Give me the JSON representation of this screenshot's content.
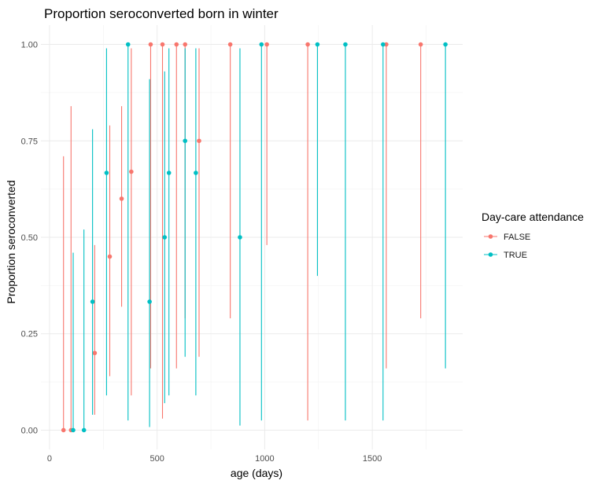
{
  "chart_data": {
    "type": "scatter",
    "title": "Proportion seroconverted born in winter",
    "xlabel": "age (days)",
    "ylabel": "Proportion seroconverted",
    "xlim": [
      -40,
      1920
    ],
    "ylim": [
      -0.05,
      1.05
    ],
    "x_ticks": [
      0,
      500,
      1000,
      1500
    ],
    "x_tick_labels": [
      "0",
      "500",
      "1000",
      "1500"
    ],
    "y_ticks": [
      0,
      0.25,
      0.5,
      0.75,
      1.0
    ],
    "y_tick_labels": [
      "0.00",
      "0.25",
      "0.50",
      "0.75",
      "1.00"
    ],
    "grid": true,
    "legend": {
      "title": "Day-care attendance",
      "placement": "right"
    },
    "series": [
      {
        "name": "FALSE",
        "color": "#F8766D",
        "points": [
          {
            "x": 65,
            "y": 0,
            "lo": 0,
            "hi": 0.71
          },
          {
            "x": 100,
            "y": 0,
            "lo": 0,
            "hi": 0.84
          },
          {
            "x": 210,
            "y": 0.2,
            "lo": 0.04,
            "hi": 0.48
          },
          {
            "x": 280,
            "y": 0.45,
            "lo": 0.14,
            "hi": 0.79
          },
          {
            "x": 335,
            "y": 0.6,
            "lo": 0.32,
            "hi": 0.84
          },
          {
            "x": 380,
            "y": 0.67,
            "lo": 0.09,
            "hi": 0.99
          },
          {
            "x": 470,
            "y": 1.0,
            "lo": 0.16,
            "hi": 1.0
          },
          {
            "x": 525,
            "y": 1.0,
            "lo": 0.03,
            "hi": 1.0
          },
          {
            "x": 590,
            "y": 1.0,
            "lo": 0.16,
            "hi": 1.0
          },
          {
            "x": 630,
            "y": 1.0,
            "lo": 0.29,
            "hi": 1.0
          },
          {
            "x": 695,
            "y": 0.75,
            "lo": 0.19,
            "hi": 0.99
          },
          {
            "x": 840,
            "y": 1.0,
            "lo": 0.29,
            "hi": 1.0
          },
          {
            "x": 1010,
            "y": 1.0,
            "lo": 0.48,
            "hi": 1.0
          },
          {
            "x": 1200,
            "y": 1.0,
            "lo": 0.025,
            "hi": 1.0
          },
          {
            "x": 1565,
            "y": 1.0,
            "lo": 0.16,
            "hi": 1.0
          },
          {
            "x": 1725,
            "y": 1.0,
            "lo": 0.29,
            "hi": 1.0
          }
        ]
      },
      {
        "name": "TRUE",
        "color": "#00BFC4",
        "points": [
          {
            "x": 110,
            "y": 0,
            "lo": 0,
            "hi": 0.46
          },
          {
            "x": 160,
            "y": 0,
            "lo": 0,
            "hi": 0.52
          },
          {
            "x": 200,
            "y": 0.333,
            "lo": 0.04,
            "hi": 0.78
          },
          {
            "x": 265,
            "y": 0.667,
            "lo": 0.09,
            "hi": 0.99
          },
          {
            "x": 365,
            "y": 1.0,
            "lo": 0.025,
            "hi": 1.0
          },
          {
            "x": 465,
            "y": 0.333,
            "lo": 0.008,
            "hi": 0.91
          },
          {
            "x": 535,
            "y": 0.5,
            "lo": 0.07,
            "hi": 0.93
          },
          {
            "x": 555,
            "y": 0.667,
            "lo": 0.09,
            "hi": 0.99
          },
          {
            "x": 630,
            "y": 0.75,
            "lo": 0.19,
            "hi": 0.99
          },
          {
            "x": 680,
            "y": 0.667,
            "lo": 0.09,
            "hi": 0.99
          },
          {
            "x": 885,
            "y": 0.5,
            "lo": 0.012,
            "hi": 0.99
          },
          {
            "x": 985,
            "y": 1.0,
            "lo": 0.025,
            "hi": 1.0
          },
          {
            "x": 1245,
            "y": 1.0,
            "lo": 0.4,
            "hi": 1.0
          },
          {
            "x": 1375,
            "y": 1.0,
            "lo": 0.025,
            "hi": 1.0
          },
          {
            "x": 1550,
            "y": 1.0,
            "lo": 0.025,
            "hi": 1.0
          },
          {
            "x": 1840,
            "y": 1.0,
            "lo": 0.16,
            "hi": 1.0
          }
        ]
      }
    ]
  }
}
